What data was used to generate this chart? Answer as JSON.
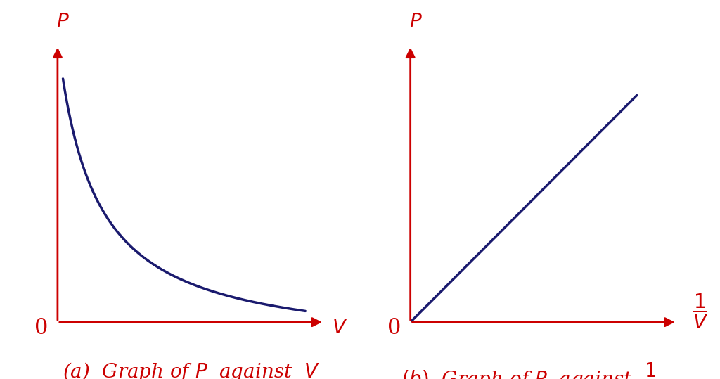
{
  "bg_color": "#ffffff",
  "curve_color": "#1a1a6e",
  "axis_color": "#cc0000",
  "curve_linewidth": 2.5,
  "axis_linewidth": 2.0,
  "label_color": "#cc0000",
  "label_fontsize": 20,
  "caption_fontsize": 20,
  "zero_fontsize": 22,
  "p_label": "$P$",
  "v_label": "$V$",
  "caption_a": "(a)  Graph of $P$  against  $V$"
}
